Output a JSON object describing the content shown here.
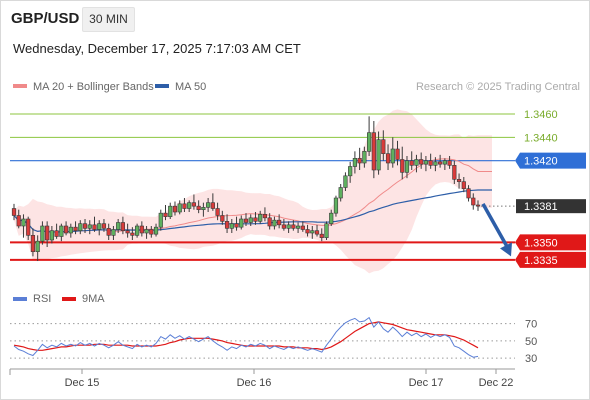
{
  "header": {
    "symbol": "GBP/USD",
    "timeframe": "30 MIN",
    "timestamp": "Wednesday, December 17, 2025 7:17:03 AM CET"
  },
  "chart_data": [
    {
      "type": "candlestick",
      "legend": [
        {
          "label": "MA 20 + Bollinger Bands",
          "color": "#f08a8a"
        },
        {
          "label": "MA 50",
          "color": "#2d5ea8"
        }
      ],
      "credit": "Research © 2025 Trading Central",
      "ylim": [
        1.3322,
        1.3472
      ],
      "levels": [
        {
          "value": 1.346,
          "label": "1.3460",
          "kind": "resistance",
          "color": "#8cc63f"
        },
        {
          "value": 1.344,
          "label": "1.3440",
          "kind": "resistance",
          "color": "#8cc63f"
        },
        {
          "value": 1.342,
          "label": "1.3420",
          "kind": "pivot",
          "color": "#2f6fd6"
        },
        {
          "value": 1.3381,
          "label": "1.3381",
          "kind": "last-price",
          "color": "#333333"
        },
        {
          "value": 1.335,
          "label": "1.3350",
          "kind": "support",
          "color": "#e01818"
        },
        {
          "value": 1.3335,
          "label": "1.3335",
          "kind": "support",
          "color": "#e01818"
        }
      ],
      "projection": {
        "from": 1.3383,
        "to": 1.3338,
        "direction": "down"
      },
      "x_ticks": [
        "Dec 15",
        "Dec 16",
        "Dec 17",
        "Dec 22"
      ],
      "candles": [
        [
          1.3379,
          1.3383,
          1.3369,
          1.3373
        ],
        [
          1.3373,
          1.3378,
          1.3362,
          1.3364
        ],
        [
          1.3364,
          1.3374,
          1.3354,
          1.337
        ],
        [
          1.337,
          1.3372,
          1.3352,
          1.3356
        ],
        [
          1.3356,
          1.3362,
          1.3338,
          1.3342
        ],
        [
          1.3342,
          1.3356,
          1.3334,
          1.3351
        ],
        [
          1.3351,
          1.3368,
          1.3348,
          1.3364
        ],
        [
          1.3364,
          1.3368,
          1.3346,
          1.3352
        ],
        [
          1.3352,
          1.3364,
          1.3349,
          1.336
        ],
        [
          1.336,
          1.3366,
          1.3353,
          1.3355
        ],
        [
          1.3355,
          1.3366,
          1.3351,
          1.3364
        ],
        [
          1.3364,
          1.3368,
          1.3356,
          1.3358
        ],
        [
          1.3358,
          1.3366,
          1.3354,
          1.3363
        ],
        [
          1.3363,
          1.3368,
          1.3357,
          1.336
        ],
        [
          1.336,
          1.3369,
          1.3357,
          1.3366
        ],
        [
          1.3366,
          1.337,
          1.3358,
          1.3362
        ],
        [
          1.3362,
          1.3369,
          1.3357,
          1.3365
        ],
        [
          1.3365,
          1.3372,
          1.3359,
          1.3361
        ],
        [
          1.3361,
          1.3369,
          1.3356,
          1.3366
        ],
        [
          1.3366,
          1.337,
          1.3359,
          1.3362
        ],
        [
          1.3362,
          1.3366,
          1.3352,
          1.3356
        ],
        [
          1.3356,
          1.3364,
          1.3352,
          1.3361
        ],
        [
          1.3361,
          1.337,
          1.3358,
          1.3367
        ],
        [
          1.3367,
          1.3372,
          1.3357,
          1.336
        ],
        [
          1.336,
          1.3366,
          1.3354,
          1.3358
        ],
        [
          1.3358,
          1.3363,
          1.3352,
          1.3356
        ],
        [
          1.3356,
          1.3366,
          1.3354,
          1.3364
        ],
        [
          1.3364,
          1.3368,
          1.3355,
          1.3358
        ],
        [
          1.3358,
          1.3364,
          1.3353,
          1.3361
        ],
        [
          1.3361,
          1.3364,
          1.3354,
          1.3357
        ],
        [
          1.3357,
          1.3366,
          1.3355,
          1.3363
        ],
        [
          1.3363,
          1.3378,
          1.336,
          1.3375
        ],
        [
          1.3375,
          1.3382,
          1.3369,
          1.3372
        ],
        [
          1.3372,
          1.3384,
          1.337,
          1.3381
        ],
        [
          1.3381,
          1.3385,
          1.3373,
          1.3376
        ],
        [
          1.3376,
          1.3386,
          1.3374,
          1.3383
        ],
        [
          1.3383,
          1.3388,
          1.3376,
          1.3379
        ],
        [
          1.3379,
          1.3386,
          1.3376,
          1.3384
        ],
        [
          1.3384,
          1.3391,
          1.3378,
          1.3381
        ],
        [
          1.3381,
          1.3386,
          1.3375,
          1.3378
        ],
        [
          1.3378,
          1.3384,
          1.3372,
          1.338
        ],
        [
          1.338,
          1.3388,
          1.3376,
          1.3384
        ],
        [
          1.3384,
          1.3392,
          1.3377,
          1.3379
        ],
        [
          1.3379,
          1.3384,
          1.3369,
          1.3373
        ],
        [
          1.3373,
          1.3377,
          1.3365,
          1.3368
        ],
        [
          1.3368,
          1.3374,
          1.3358,
          1.3362
        ],
        [
          1.3362,
          1.337,
          1.3358,
          1.3366
        ],
        [
          1.3366,
          1.3372,
          1.336,
          1.3363
        ],
        [
          1.3363,
          1.3373,
          1.3361,
          1.337
        ],
        [
          1.337,
          1.3375,
          1.3364,
          1.3367
        ],
        [
          1.3367,
          1.3374,
          1.3364,
          1.3371
        ],
        [
          1.3371,
          1.3376,
          1.3365,
          1.3368
        ],
        [
          1.3368,
          1.3377,
          1.3366,
          1.3374
        ],
        [
          1.3374,
          1.338,
          1.3368,
          1.3371
        ],
        [
          1.3371,
          1.3375,
          1.3361,
          1.3364
        ],
        [
          1.3364,
          1.3372,
          1.3361,
          1.3369
        ],
        [
          1.3369,
          1.3374,
          1.3362,
          1.3365
        ],
        [
          1.3365,
          1.337,
          1.336,
          1.3362
        ],
        [
          1.3362,
          1.3368,
          1.3358,
          1.3365
        ],
        [
          1.3365,
          1.3369,
          1.336,
          1.3362
        ],
        [
          1.3362,
          1.3367,
          1.3358,
          1.3364
        ],
        [
          1.3364,
          1.3368,
          1.3359,
          1.3361
        ],
        [
          1.3361,
          1.3365,
          1.3355,
          1.3358
        ],
        [
          1.3358,
          1.3364,
          1.3353,
          1.336
        ],
        [
          1.336,
          1.3365,
          1.3355,
          1.3357
        ],
        [
          1.3357,
          1.3362,
          1.3351,
          1.3354
        ],
        [
          1.3354,
          1.3368,
          1.3352,
          1.3366
        ],
        [
          1.3366,
          1.3378,
          1.3364,
          1.3375
        ],
        [
          1.3375,
          1.339,
          1.3372,
          1.3388
        ],
        [
          1.3388,
          1.34,
          1.3385,
          1.3397
        ],
        [
          1.3397,
          1.341,
          1.3394,
          1.3407
        ],
        [
          1.3407,
          1.3419,
          1.3401,
          1.3415
        ],
        [
          1.3415,
          1.3428,
          1.3409,
          1.3422
        ],
        [
          1.3422,
          1.3431,
          1.3412,
          1.3418
        ],
        [
          1.3418,
          1.3432,
          1.3414,
          1.3428
        ],
        [
          1.3428,
          1.3458,
          1.3424,
          1.3444
        ],
        [
          1.3444,
          1.3454,
          1.3405,
          1.3412
        ],
        [
          1.3412,
          1.3445,
          1.3408,
          1.3438
        ],
        [
          1.3438,
          1.3446,
          1.342,
          1.3426
        ],
        [
          1.3426,
          1.3434,
          1.3412,
          1.3418
        ],
        [
          1.3418,
          1.344,
          1.3414,
          1.343
        ],
        [
          1.343,
          1.3437,
          1.3416,
          1.3421
        ],
        [
          1.3421,
          1.3432,
          1.3404,
          1.341
        ],
        [
          1.341,
          1.3424,
          1.3405,
          1.342
        ],
        [
          1.342,
          1.3428,
          1.3412,
          1.3416
        ],
        [
          1.3416,
          1.3425,
          1.341,
          1.3421
        ],
        [
          1.3421,
          1.3427,
          1.3413,
          1.3417
        ],
        [
          1.3417,
          1.3424,
          1.3411,
          1.342
        ],
        [
          1.342,
          1.3426,
          1.3413,
          1.3416
        ],
        [
          1.3416,
          1.3423,
          1.3411,
          1.3419
        ],
        [
          1.3419,
          1.3425,
          1.3414,
          1.3417
        ],
        [
          1.3417,
          1.3422,
          1.3412,
          1.342
        ],
        [
          1.342,
          1.3424,
          1.3413,
          1.3416
        ],
        [
          1.3416,
          1.342,
          1.34,
          1.3404
        ],
        [
          1.3404,
          1.3409,
          1.3396,
          1.3402
        ],
        [
          1.3402,
          1.3406,
          1.3393,
          1.3396
        ],
        [
          1.3396,
          1.3399,
          1.3385,
          1.3388
        ],
        [
          1.3388,
          1.3392,
          1.3378,
          1.3382
        ],
        [
          1.3382,
          1.3386,
          1.3377,
          1.3381
        ]
      ]
    },
    {
      "type": "line",
      "legend": [
        {
          "label": "RSI",
          "color": "#5b7fd6"
        },
        {
          "label": "9MA",
          "color": "#e01818"
        }
      ],
      "ylim": [
        22,
        80
      ],
      "y_ticks": [
        70,
        50,
        30
      ],
      "series": [
        {
          "name": "RSI",
          "values": [
            44,
            40,
            38,
            35,
            33,
            39,
            46,
            42,
            45,
            43,
            47,
            44,
            46,
            44,
            48,
            45,
            47,
            44,
            47,
            45,
            42,
            45,
            49,
            45,
            43,
            41,
            46,
            43,
            45,
            43,
            47,
            55,
            52,
            57,
            53,
            56,
            52,
            55,
            52,
            49,
            52,
            55,
            50,
            46,
            43,
            39,
            43,
            41,
            45,
            43,
            46,
            44,
            47,
            45,
            41,
            44,
            42,
            40,
            43,
            41,
            43,
            41,
            39,
            41,
            39,
            37,
            45,
            52,
            60,
            66,
            71,
            74,
            76,
            72,
            73,
            77,
            66,
            72,
            64,
            60,
            66,
            61,
            55,
            60,
            56,
            59,
            55,
            58,
            54,
            57,
            55,
            57,
            54,
            44,
            42,
            38,
            34,
            31,
            32
          ]
        },
        {
          "name": "9MA",
          "values": [
            45,
            44,
            43,
            41,
            40,
            39,
            39,
            40,
            41,
            42,
            43,
            43,
            44,
            45,
            45,
            45,
            45,
            46,
            46,
            46,
            45,
            45,
            45,
            45,
            45,
            44,
            44,
            44,
            44,
            44,
            44,
            45,
            46,
            48,
            49,
            51,
            52,
            53,
            53,
            53,
            53,
            53,
            52,
            51,
            50,
            48,
            47,
            46,
            45,
            44,
            44,
            44,
            44,
            44,
            44,
            44,
            44,
            43,
            43,
            43,
            42,
            42,
            42,
            41,
            41,
            40,
            41,
            43,
            46,
            49,
            53,
            57,
            61,
            64,
            67,
            70,
            71,
            72,
            71,
            70,
            69,
            67,
            65,
            63,
            62,
            61,
            60,
            59,
            58,
            57,
            57,
            57,
            56,
            55,
            53,
            51,
            48,
            45,
            42
          ]
        }
      ]
    }
  ]
}
